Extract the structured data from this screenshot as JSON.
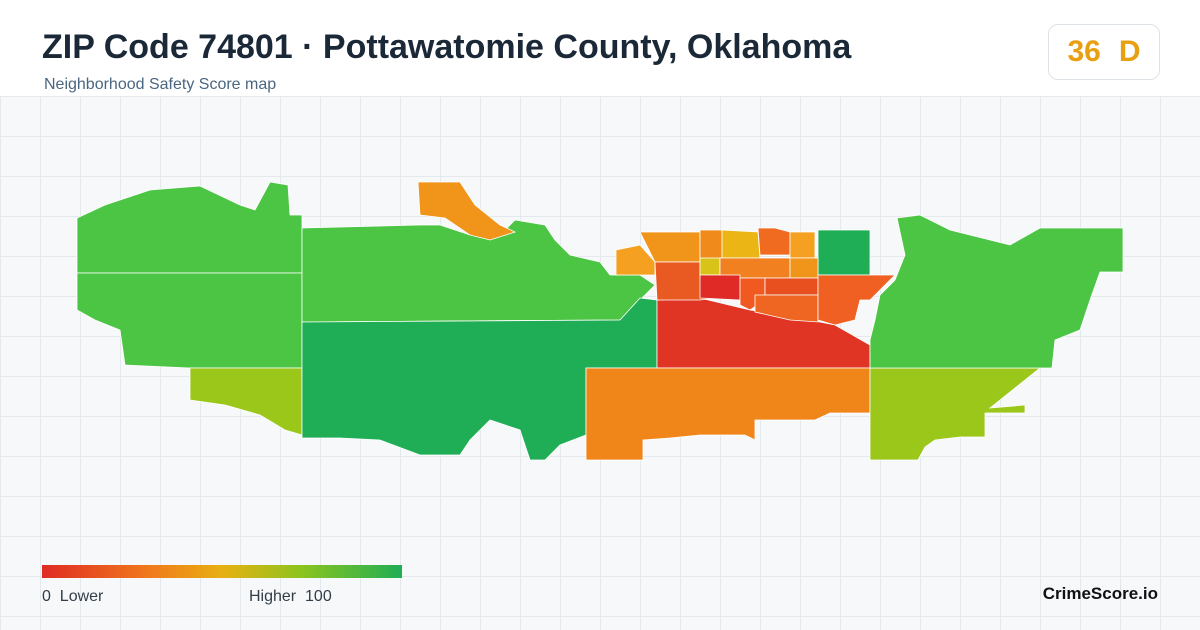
{
  "header": {
    "title": "ZIP Code 74801 · Pottawatomie County, Oklahoma",
    "subtitle": "Neighborhood Safety Score map"
  },
  "score": {
    "value": 36,
    "grade": "D"
  },
  "legend": {
    "min": 0,
    "min_label": "Lower",
    "max_label": "Higher",
    "max": 100
  },
  "footer": {
    "brand": "CrimeScore.io"
  }
}
